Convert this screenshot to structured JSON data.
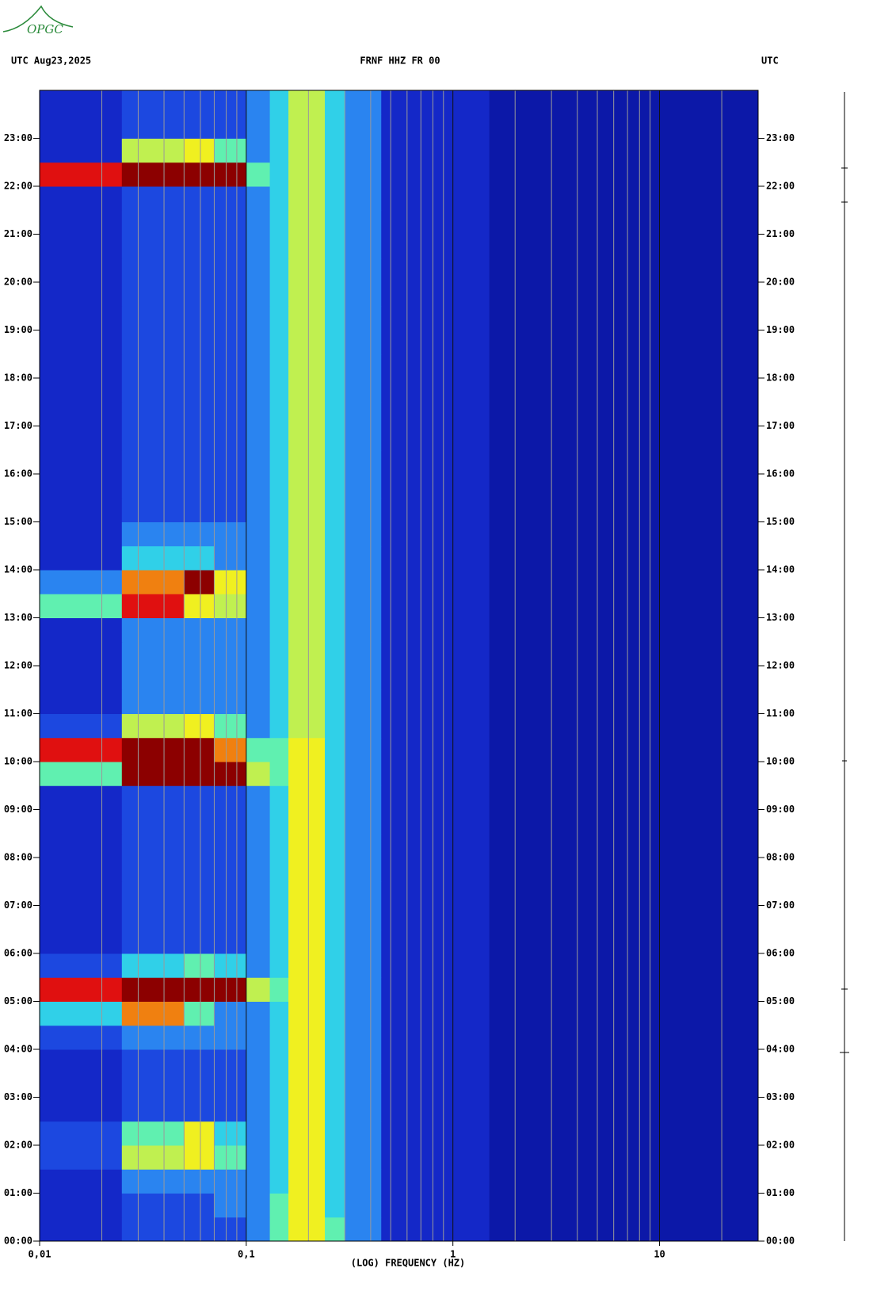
{
  "logo": "OPGC",
  "header": {
    "left": "UTC  Aug23,2025",
    "center": "FRNF HHZ FR 00",
    "right": "UTC"
  },
  "chart_data": {
    "type": "heatmap",
    "xlabel": "(LOG) FREQUENCY (HZ)",
    "xscale": "log",
    "xlim": [
      0.01,
      30
    ],
    "xticks": [
      {
        "value": 0.01,
        "label": "0,01"
      },
      {
        "value": 0.1,
        "label": "0,1"
      },
      1,
      10
    ],
    "xminorticks": [
      0.02,
      0.03,
      0.04,
      0.05,
      0.06,
      0.07,
      0.08,
      0.09,
      0.2,
      0.3,
      0.4,
      0.5,
      0.6,
      0.7,
      0.8,
      0.9,
      2,
      3,
      4,
      5,
      6,
      7,
      8,
      9,
      20
    ],
    "ylim": [
      0,
      24
    ],
    "yticks": [
      {
        "value": 0,
        "label": "00:00"
      },
      {
        "value": 1,
        "label": "01:00"
      },
      {
        "value": 2,
        "label": "02:00"
      },
      {
        "value": 3,
        "label": "03:00"
      },
      {
        "value": 4,
        "label": "04:00"
      },
      {
        "value": 5,
        "label": "05:00"
      },
      {
        "value": 6,
        "label": "06:00"
      },
      {
        "value": 7,
        "label": "07:00"
      },
      {
        "value": 8,
        "label": "08:00"
      },
      {
        "value": 9,
        "label": "09:00"
      },
      {
        "value": 10,
        "label": "10:00"
      },
      {
        "value": 11,
        "label": "11:00"
      },
      {
        "value": 12,
        "label": "12:00"
      },
      {
        "value": 13,
        "label": "13:00"
      },
      {
        "value": 14,
        "label": "14:00"
      },
      {
        "value": 15,
        "label": "15:00"
      },
      {
        "value": 16,
        "label": "16:00"
      },
      {
        "value": 17,
        "label": "17:00"
      },
      {
        "value": 18,
        "label": "18:00"
      },
      {
        "value": 19,
        "label": "19:00"
      },
      {
        "value": 20,
        "label": "20:00"
      },
      {
        "value": 21,
        "label": "21:00"
      },
      {
        "value": 22,
        "label": "22:00"
      },
      {
        "value": 23,
        "label": "23:00"
      }
    ],
    "xbins": [
      0.01,
      0.025,
      0.05,
      0.07,
      0.1,
      0.13,
      0.16,
      0.24,
      0.3,
      0.45,
      1.5,
      30
    ],
    "ybins": [
      0,
      0.5,
      1,
      1.5,
      2,
      2.5,
      3,
      3.5,
      4,
      4.5,
      5,
      5.5,
      6,
      6.5,
      7,
      7.5,
      8,
      8.5,
      9,
      9.5,
      10,
      10.5,
      11,
      11.5,
      12,
      12.5,
      13,
      13.5,
      14,
      14.5,
      15,
      15.5,
      16,
      16.5,
      17,
      17.5,
      18,
      18.5,
      19,
      19.5,
      20,
      20.5,
      21,
      21.5,
      22,
      22.5,
      23,
      23.5,
      24
    ],
    "colorscale": [
      "#0c18a8",
      "#1428c8",
      "#1c48e0",
      "#2a84f0",
      "#30d0e8",
      "#60f0b0",
      "#c0f050",
      "#f0f020",
      "#f08010",
      "#e01010",
      "#8c0000"
    ],
    "z": [
      [
        1,
        2,
        2,
        2,
        3,
        5,
        7,
        5,
        3,
        1,
        0
      ],
      [
        1,
        2,
        2,
        3,
        3,
        5,
        7,
        4,
        3,
        1,
        0
      ],
      [
        1,
        3,
        3,
        3,
        3,
        4,
        7,
        4,
        3,
        1,
        0
      ],
      [
        2,
        6,
        7,
        5,
        3,
        4,
        7,
        4,
        3,
        1,
        0
      ],
      [
        2,
        5,
        7,
        4,
        3,
        4,
        7,
        4,
        3,
        1,
        0
      ],
      [
        1,
        2,
        2,
        2,
        3,
        4,
        7,
        4,
        3,
        1,
        0
      ],
      [
        1,
        2,
        2,
        2,
        3,
        4,
        7,
        4,
        3,
        1,
        0
      ],
      [
        1,
        2,
        2,
        2,
        3,
        4,
        7,
        4,
        3,
        1,
        0
      ],
      [
        2,
        3,
        3,
        3,
        3,
        4,
        7,
        4,
        3,
        1,
        0
      ],
      [
        4,
        8,
        5,
        3,
        3,
        4,
        7,
        4,
        3,
        1,
        0
      ],
      [
        9,
        10,
        10,
        10,
        6,
        5,
        7,
        4,
        3,
        1,
        0
      ],
      [
        2,
        4,
        5,
        4,
        3,
        4,
        7,
        4,
        3,
        1,
        0
      ],
      [
        1,
        2,
        2,
        2,
        3,
        4,
        7,
        4,
        3,
        1,
        0
      ],
      [
        1,
        2,
        2,
        2,
        3,
        4,
        7,
        4,
        3,
        1,
        0
      ],
      [
        1,
        2,
        2,
        2,
        3,
        4,
        7,
        4,
        3,
        1,
        0
      ],
      [
        1,
        2,
        2,
        2,
        3,
        4,
        7,
        4,
        3,
        1,
        0
      ],
      [
        1,
        2,
        2,
        2,
        3,
        4,
        7,
        4,
        3,
        1,
        0
      ],
      [
        1,
        2,
        2,
        2,
        3,
        4,
        7,
        4,
        3,
        1,
        0
      ],
      [
        1,
        2,
        2,
        2,
        3,
        4,
        7,
        4,
        3,
        1,
        0
      ],
      [
        5,
        10,
        10,
        10,
        6,
        5,
        7,
        4,
        3,
        1,
        0
      ],
      [
        9,
        10,
        10,
        8,
        5,
        5,
        7,
        4,
        3,
        1,
        0
      ],
      [
        2,
        6,
        7,
        5,
        3,
        4,
        6,
        4,
        3,
        1,
        0
      ],
      [
        1,
        3,
        3,
        3,
        3,
        4,
        6,
        4,
        3,
        1,
        0
      ],
      [
        1,
        3,
        3,
        3,
        3,
        4,
        6,
        4,
        3,
        1,
        0
      ],
      [
        1,
        3,
        3,
        3,
        3,
        4,
        6,
        4,
        3,
        1,
        0
      ],
      [
        1,
        3,
        3,
        3,
        3,
        4,
        6,
        4,
        3,
        1,
        0
      ],
      [
        5,
        9,
        7,
        6,
        3,
        4,
        6,
        4,
        3,
        1,
        0
      ],
      [
        3,
        8,
        10,
        7,
        3,
        4,
        6,
        4,
        3,
        1,
        0
      ],
      [
        1,
        4,
        4,
        3,
        3,
        4,
        6,
        4,
        3,
        1,
        0
      ],
      [
        1,
        3,
        3,
        3,
        3,
        4,
        6,
        4,
        3,
        1,
        0
      ],
      [
        1,
        2,
        2,
        2,
        3,
        4,
        6,
        4,
        3,
        1,
        0
      ],
      [
        1,
        2,
        2,
        2,
        3,
        4,
        6,
        4,
        3,
        1,
        0
      ],
      [
        1,
        2,
        2,
        2,
        3,
        4,
        6,
        4,
        3,
        1,
        0
      ],
      [
        1,
        2,
        2,
        2,
        3,
        4,
        6,
        4,
        3,
        1,
        0
      ],
      [
        1,
        2,
        2,
        2,
        3,
        4,
        6,
        4,
        3,
        1,
        0
      ],
      [
        1,
        2,
        2,
        2,
        3,
        4,
        6,
        4,
        3,
        1,
        0
      ],
      [
        1,
        2,
        2,
        2,
        3,
        4,
        6,
        4,
        3,
        1,
        0
      ],
      [
        1,
        2,
        2,
        2,
        3,
        4,
        6,
        4,
        3,
        1,
        0
      ],
      [
        1,
        2,
        2,
        2,
        3,
        4,
        6,
        4,
        3,
        1,
        0
      ],
      [
        1,
        2,
        2,
        2,
        3,
        4,
        6,
        4,
        3,
        1,
        0
      ],
      [
        1,
        2,
        2,
        2,
        3,
        4,
        6,
        4,
        3,
        1,
        0
      ],
      [
        1,
        2,
        2,
        2,
        3,
        4,
        6,
        4,
        3,
        1,
        0
      ],
      [
        1,
        2,
        2,
        2,
        3,
        4,
        6,
        4,
        3,
        1,
        0
      ],
      [
        1,
        2,
        2,
        2,
        3,
        4,
        6,
        4,
        3,
        1,
        0
      ],
      [
        9,
        10,
        10,
        10,
        5,
        4,
        6,
        4,
        3,
        1,
        0
      ],
      [
        1,
        6,
        7,
        5,
        3,
        4,
        6,
        4,
        3,
        1,
        0
      ],
      [
        1,
        2,
        2,
        2,
        3,
        4,
        6,
        4,
        3,
        1,
        0
      ],
      [
        1,
        2,
        2,
        2,
        3,
        4,
        6,
        4,
        3,
        1,
        0
      ]
    ]
  }
}
